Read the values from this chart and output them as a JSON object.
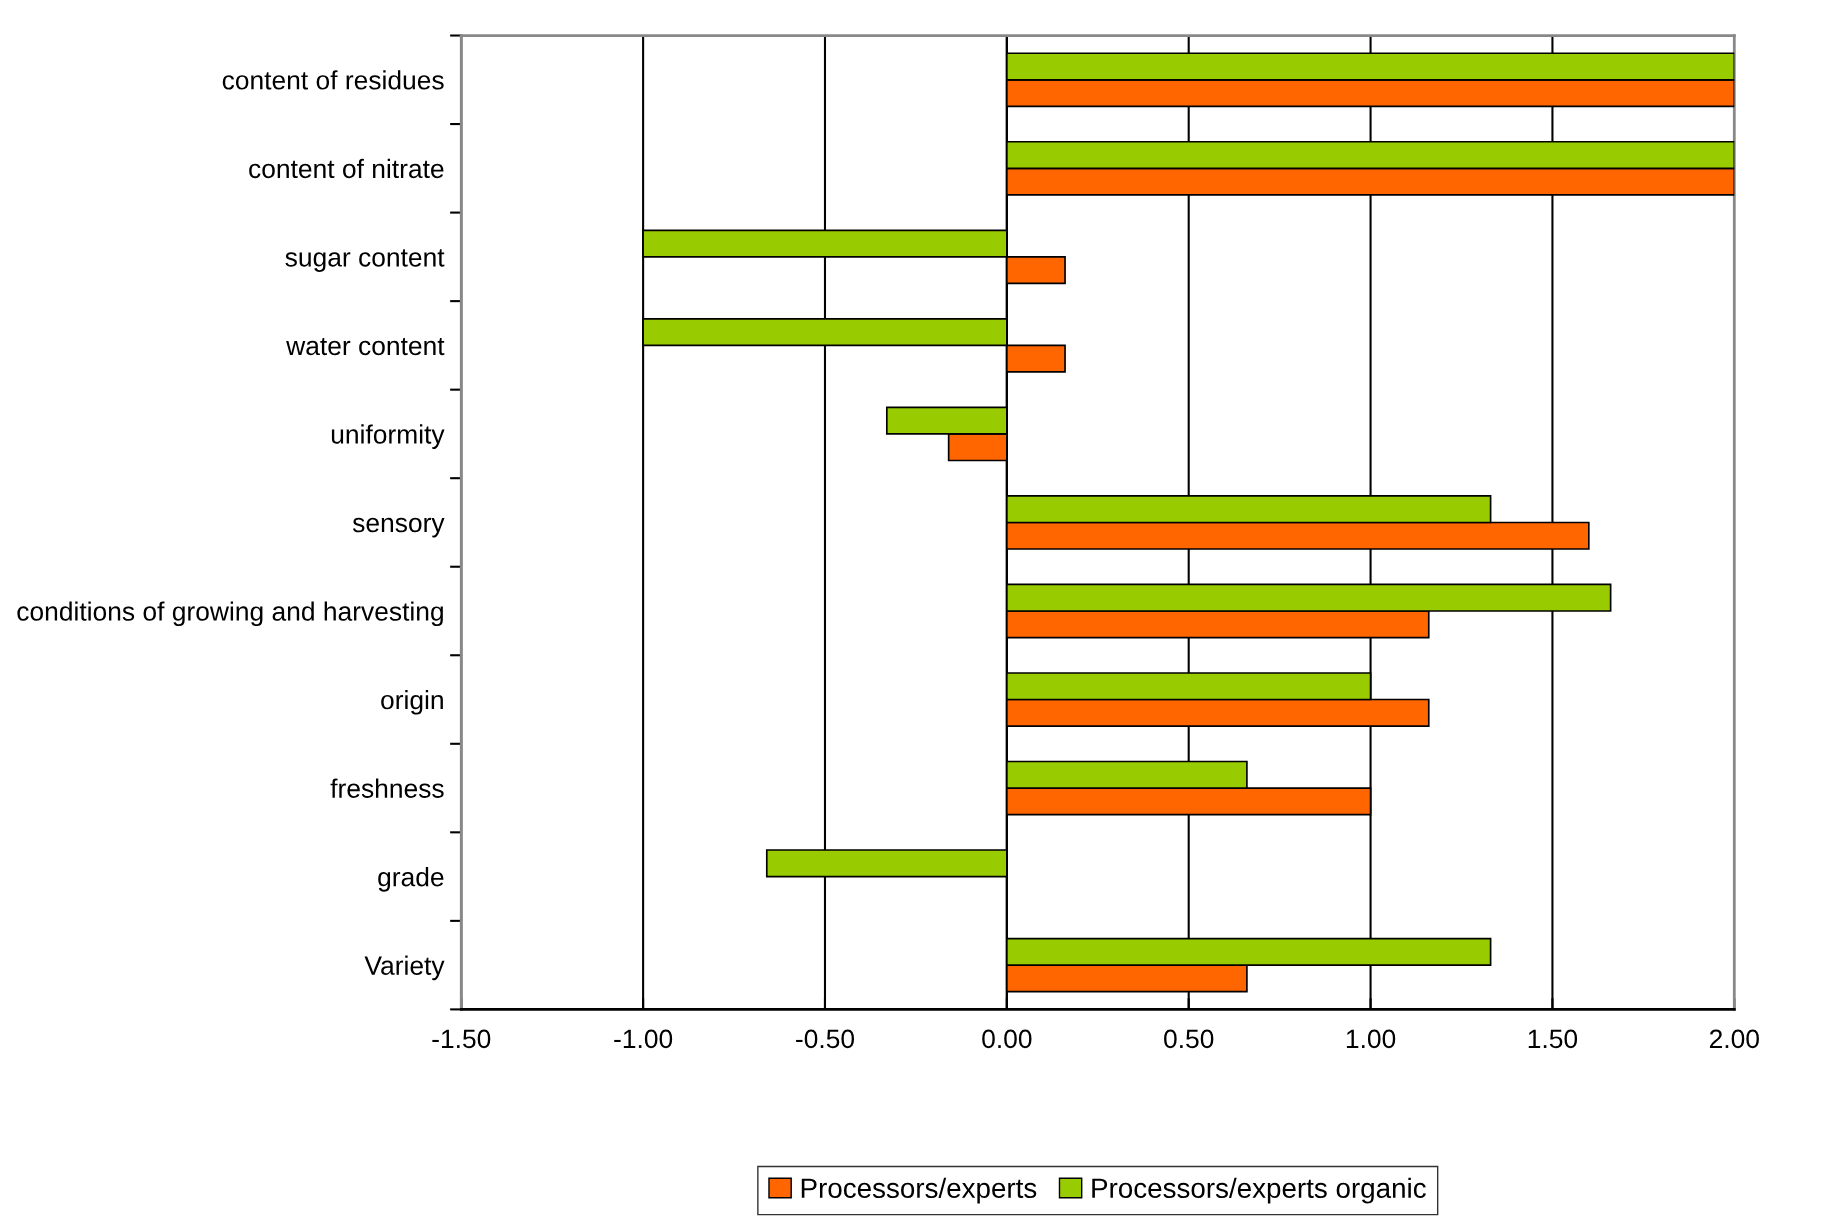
{
  "chart_data": {
    "type": "bar",
    "orientation": "horizontal",
    "categories": [
      "content of residues",
      "content of nitrate",
      "sugar content",
      "water content",
      "uniformity",
      "sensory",
      "conditions of growing and harvesting",
      "origin",
      "freshness",
      "grade",
      "Variety"
    ],
    "series": [
      {
        "name": "Processors/experts",
        "color": "#ff6600",
        "values": [
          2.0,
          2.0,
          0.16,
          0.16,
          -0.16,
          1.6,
          1.16,
          1.16,
          1.0,
          0,
          0.66
        ]
      },
      {
        "name": "Processors/experts organic",
        "color": "#99cc00",
        "values": [
          2.0,
          2.0,
          -1.0,
          -1.0,
          -0.33,
          1.33,
          1.66,
          1.0,
          0.66,
          -0.66,
          1.33
        ]
      }
    ],
    "xlim": [
      -1.5,
      2.0
    ],
    "xticks": [
      {
        "value": -1.5,
        "label": "-1.50"
      },
      {
        "value": -1.0,
        "label": "-1.00"
      },
      {
        "value": -0.5,
        "label": "-0.50"
      },
      {
        "value": 0,
        "label": "0.00"
      },
      {
        "value": 0.5,
        "label": "0.50"
      },
      {
        "value": 1.0,
        "label": "1.00"
      },
      {
        "value": 1.5,
        "label": "1.50"
      },
      {
        "value": 2.0,
        "label": "2.00"
      }
    ],
    "grid": "x",
    "legend": "bottom"
  }
}
